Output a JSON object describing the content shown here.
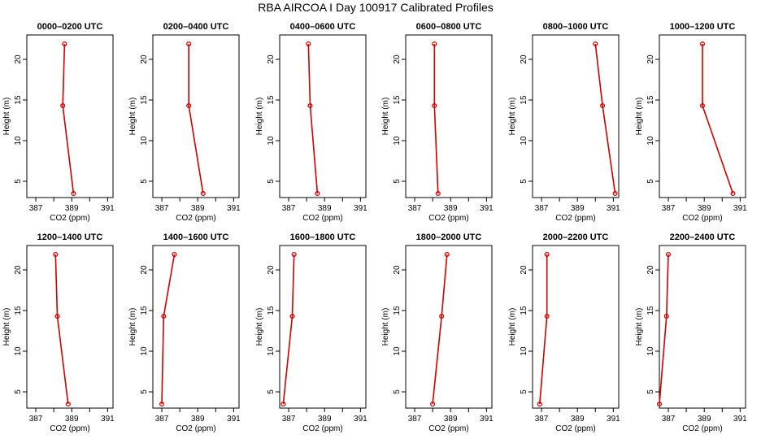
{
  "title": "RBA AIRCOA I  Day 100917  Calibrated Profiles",
  "chart_data": {
    "type": "line",
    "title": "RBA AIRCOA I  Day 100917  Calibrated Profiles",
    "xlabel": "CO2 (ppm)",
    "ylabel": "Height (m)",
    "xlim": [
      386.5,
      391.3
    ],
    "ylim": [
      3,
      23
    ],
    "x_ticks": [
      "387",
      "389",
      "391"
    ],
    "y_ticks": [
      "5",
      "10",
      "15",
      "20"
    ],
    "heights": [
      3.5,
      14.3,
      21.9
    ],
    "grid": false,
    "line_color": "#cc0000",
    "panels": [
      {
        "title": "0000–0200 UTC",
        "co2": [
          389.1,
          388.5,
          388.6
        ]
      },
      {
        "title": "0200–0400 UTC",
        "co2": [
          389.3,
          388.5,
          388.5
        ]
      },
      {
        "title": "0400–0600 UTC",
        "co2": [
          388.6,
          388.2,
          388.1
        ]
      },
      {
        "title": "0600–0800 UTC",
        "co2": [
          388.3,
          388.1,
          388.1
        ]
      },
      {
        "title": "0800–1000 UTC",
        "co2": [
          391.1,
          390.4,
          390.0
        ]
      },
      {
        "title": "1000–1200 UTC",
        "co2": [
          390.6,
          388.9,
          388.9
        ]
      },
      {
        "title": "1200–1400 UTC",
        "co2": [
          388.8,
          388.2,
          388.1
        ]
      },
      {
        "title": "1400–1600 UTC",
        "co2": [
          387.0,
          387.1,
          387.7
        ]
      },
      {
        "title": "1600–1800 UTC",
        "co2": [
          386.7,
          387.2,
          387.3
        ]
      },
      {
        "title": "1800–2000 UTC",
        "co2": [
          388.0,
          388.5,
          388.8
        ]
      },
      {
        "title": "2000–2200 UTC",
        "co2": [
          386.9,
          387.3,
          387.3
        ]
      },
      {
        "title": "2200–2400 UTC",
        "co2": [
          386.5,
          386.9,
          387.0
        ]
      }
    ]
  }
}
